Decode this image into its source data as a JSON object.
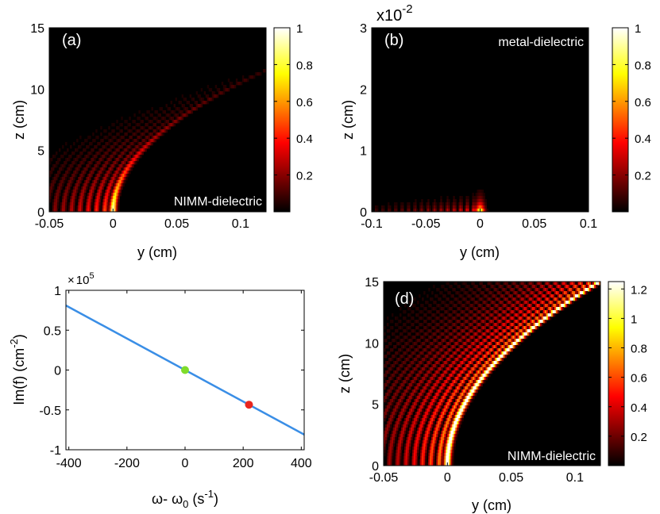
{
  "chart_data": [
    {
      "type": "heatmap",
      "panel": "(a)",
      "annotation": "NIMM-dielectric",
      "xlabel": "y (cm)",
      "ylabel": "z (cm)",
      "xlim": [
        -0.05,
        0.12
      ],
      "ylim": [
        0,
        15
      ],
      "xticks": [
        "-0.05",
        "0",
        "0.05",
        "0.1"
      ],
      "xtick_values": [
        -0.05,
        0,
        0.05,
        0.1
      ],
      "yticks": [
        "0",
        "5",
        "10",
        "15"
      ],
      "ytick_values": [
        0,
        5,
        10,
        15
      ],
      "colorbar": {
        "range": [
          0,
          1
        ],
        "tick_labels": [
          "0.2",
          "0.4",
          "0.6",
          "0.8",
          "1"
        ],
        "tick_values": [
          0.2,
          0.4,
          0.6,
          0.8,
          1.0
        ]
      },
      "colormap": "hot",
      "beam": {
        "y0": 0,
        "curvature": 0.0009,
        "decay": 4.5,
        "max_z": 15
      }
    },
    {
      "type": "heatmap",
      "panel": "(b)",
      "annotation": "metal-dielectric",
      "exponent_label": "x10",
      "exponent_power": "-2",
      "xlabel": "y (cm)",
      "ylabel": "z (cm)",
      "xlim": [
        -0.1,
        0.1
      ],
      "ylim": [
        0,
        3
      ],
      "xticks": [
        "-0.1",
        "-0.05",
        "0",
        "0.05",
        "0.1"
      ],
      "xtick_values": [
        -0.1,
        -0.05,
        0,
        0.05,
        0.1
      ],
      "yticks": [
        "0",
        "1",
        "2",
        "3"
      ],
      "ytick_values": [
        0,
        1,
        2,
        3
      ],
      "colorbar": {
        "range": [
          0,
          1
        ],
        "tick_labels": [
          "0.2",
          "0.4",
          "0.6",
          "0.8",
          "1"
        ],
        "tick_values": [
          0.2,
          0.4,
          0.6,
          0.8,
          1.0
        ]
      },
      "colormap": "hot",
      "beam": {
        "y0": 0,
        "decay": 0.25,
        "max_z": 0.6
      }
    },
    {
      "type": "line",
      "panel": "(c)",
      "multiplier_prefix": "×",
      "multiplier_base": "10",
      "multiplier_power": "5",
      "xlabel_main": "ω- ω",
      "xlabel_sub": "0",
      "xlabel_rest": " (s",
      "xlabel_sup": "-1",
      "xlabel_end": ")",
      "ylabel_main": "Im(f) (cm",
      "ylabel_sup": "-2",
      "ylabel_end": ")",
      "xlim": [
        -410,
        410
      ],
      "ylim": [
        -1,
        1
      ],
      "xticks": [
        "-400",
        "-200",
        "0",
        "200",
        "400"
      ],
      "xtick_values": [
        -400,
        -200,
        0,
        200,
        400
      ],
      "yticks": [
        "-1",
        "-0.5",
        "0",
        "0.5",
        "1"
      ],
      "ytick_values": [
        -1,
        -0.5,
        0,
        0.5,
        1
      ],
      "series": [
        {
          "x": [
            -410,
            410
          ],
          "y": [
            0.81,
            -0.81
          ],
          "color": "#3a8ee6"
        }
      ],
      "points": [
        {
          "x": 0,
          "y": 0,
          "color": "#7fdc2c"
        },
        {
          "x": 220,
          "y": -0.435,
          "color": "#e8261f"
        }
      ]
    },
    {
      "type": "heatmap",
      "panel": "(d)",
      "annotation": "NIMM-dielectric",
      "xlabel": "y (cm)",
      "ylabel": "z (cm)",
      "xlim": [
        -0.05,
        0.12
      ],
      "ylim": [
        0,
        15
      ],
      "xticks": [
        "-0.05",
        "0",
        "0.05",
        "0.1"
      ],
      "xtick_values": [
        -0.05,
        0,
        0.05,
        0.1
      ],
      "yticks": [
        "0",
        "5",
        "10",
        "15"
      ],
      "ytick_values": [
        0,
        5,
        10,
        15
      ],
      "colorbar": {
        "range": [
          0,
          1.25
        ],
        "tick_labels": [
          "0.2",
          "0.4",
          "0.6",
          "0.8",
          "1",
          "1.2"
        ],
        "tick_values": [
          0.2,
          0.4,
          0.6,
          0.8,
          1.0,
          1.2
        ]
      },
      "colormap": "hot",
      "beam": {
        "y0": 0,
        "curvature": 0.00053,
        "decay": 0,
        "max_z": 15
      }
    }
  ]
}
